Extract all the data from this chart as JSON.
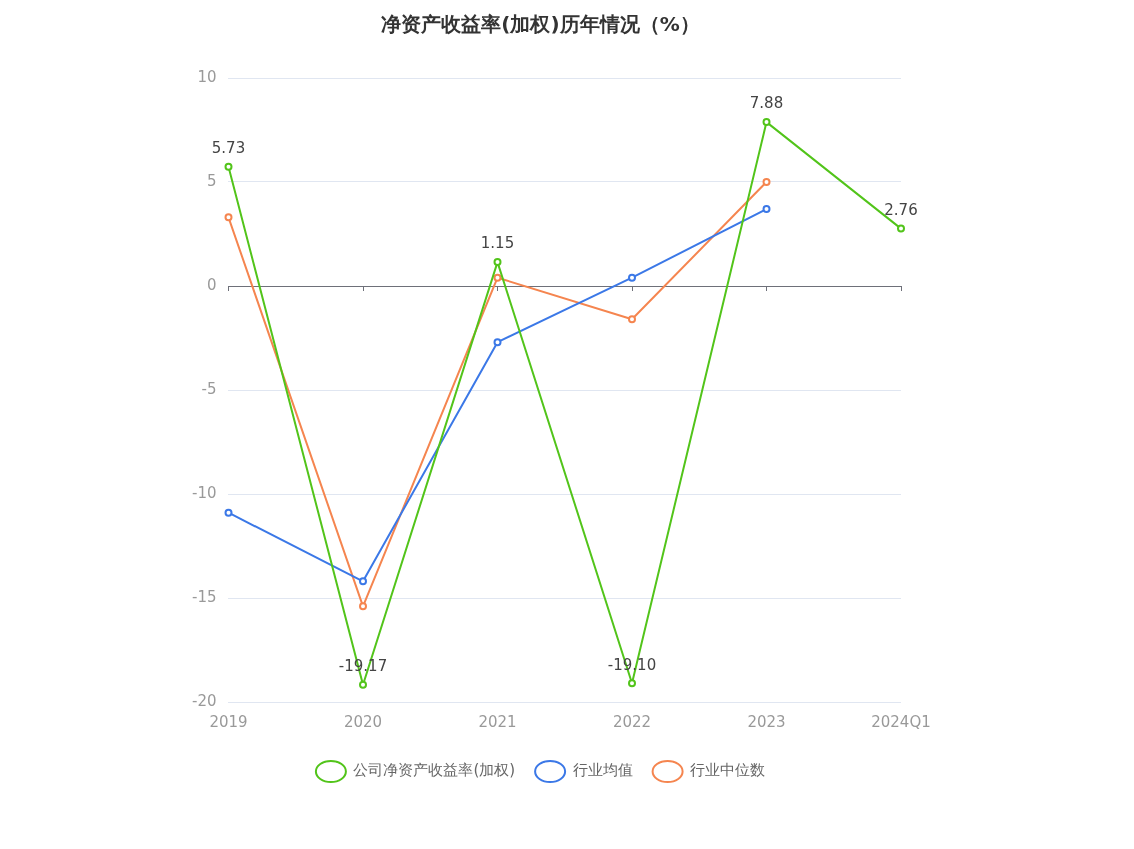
{
  "chart_data": {
    "type": "line",
    "title": "净资产收益率(加权)历年情况（%）",
    "categories": [
      "2019",
      "2020",
      "2021",
      "2022",
      "2023",
      "2024Q1"
    ],
    "series": [
      {
        "name": "公司净资产收益率(加权)",
        "color": "#52c41a",
        "values": [
          5.73,
          -19.17,
          1.15,
          -19.1,
          7.88,
          2.76
        ],
        "value_labels": [
          "5.73",
          "-19.17",
          "1.15",
          "-19.10",
          "7.88",
          "2.76"
        ]
      },
      {
        "name": "行业均值",
        "color": "#3b78e7",
        "values": [
          -10.9,
          -14.2,
          -2.7,
          0.4,
          3.7,
          null
        ]
      },
      {
        "name": "行业中位数",
        "color": "#f5854f",
        "values": [
          3.3,
          -15.4,
          0.4,
          -1.6,
          5.0,
          null
        ]
      }
    ],
    "ylim": [
      -20,
      10
    ],
    "yticks": [
      -20,
      -15,
      -10,
      -5,
      0,
      5,
      10
    ],
    "grid": "y",
    "legend": "bottom",
    "marker": "circle",
    "line_style": "solid"
  }
}
